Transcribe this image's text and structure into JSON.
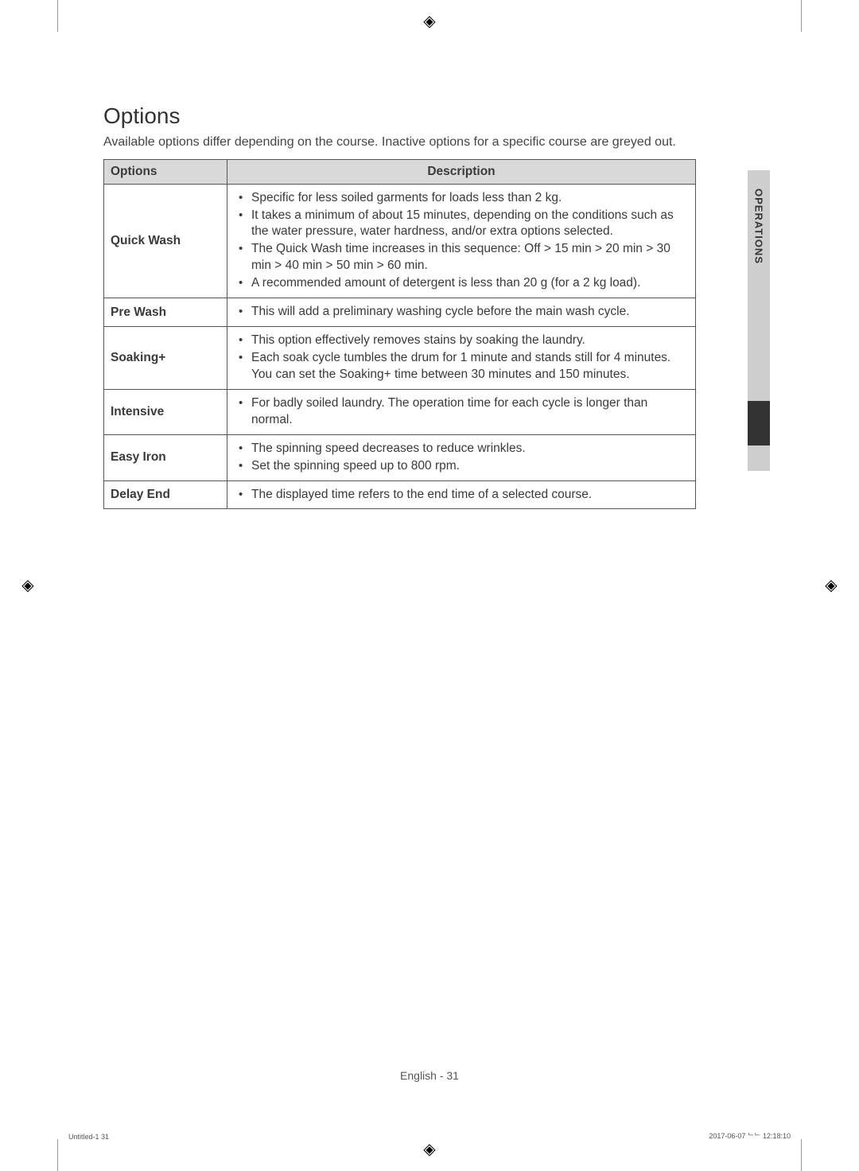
{
  "section": {
    "title": "Options",
    "intro": "Available options differ depending on the course. Inactive options for a specific course are greyed out."
  },
  "table": {
    "headers": {
      "options": "Options",
      "description": "Description"
    },
    "rows": [
      {
        "name": "Quick Wash",
        "bullets": [
          "Specific for less soiled garments for loads less than 2 kg.",
          "It takes a minimum of about 15 minutes, depending on the conditions such as the water pressure, water hardness, and/or extra options selected.",
          "The Quick Wash time increases in this sequence: Off > 15 min > 20 min > 30 min > 40 min > 50 min > 60 min.",
          "A recommended amount of detergent is less than 20 g (for a 2 kg load)."
        ]
      },
      {
        "name": "Pre Wash",
        "bullets": [
          "This will add a preliminary washing cycle before the main wash cycle."
        ]
      },
      {
        "name": "Soaking+",
        "bullets": [
          "This option effectively removes stains by soaking the laundry.",
          "Each soak cycle tumbles the drum for 1 minute and stands still for 4 minutes. You can set the Soaking+ time between 30 minutes and 150 minutes."
        ]
      },
      {
        "name": "Intensive",
        "bullets": [
          "For badly soiled laundry. The operation time for each cycle is longer than normal."
        ]
      },
      {
        "name": "Easy Iron",
        "bullets": [
          "The spinning speed decreases to reduce wrinkles.",
          "Set the spinning speed up to 800 rpm."
        ]
      },
      {
        "name": "Delay End",
        "bullets": [
          "The displayed time refers to the end time of a selected course."
        ]
      }
    ]
  },
  "sidetab": {
    "label": "OPERATIONS"
  },
  "footer": {
    "center": "English - 31",
    "left": "Untitled-1   31",
    "right": "2017-06-07   ᄂᄂ 12:18:10"
  },
  "colors": {
    "header_bg": "#d9d9d9",
    "border": "#555555",
    "text": "#3a3a3a",
    "tab_bg": "#cfcfcf",
    "tab_active": "#333333"
  }
}
